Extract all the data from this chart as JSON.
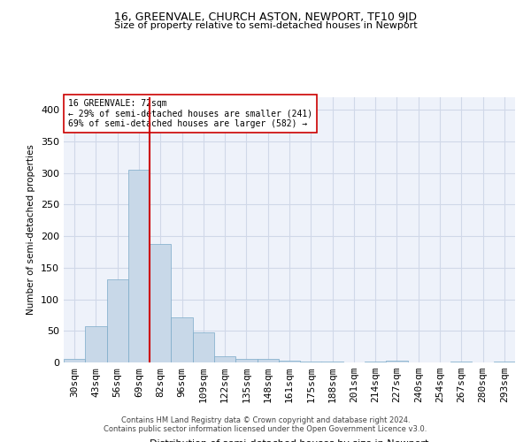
{
  "title": "16, GREENVALE, CHURCH ASTON, NEWPORT, TF10 9JD",
  "subtitle": "Size of property relative to semi-detached houses in Newport",
  "xlabel": "Distribution of semi-detached houses by size in Newport",
  "ylabel": "Number of semi-detached properties",
  "footer_line1": "Contains HM Land Registry data © Crown copyright and database right 2024.",
  "footer_line2": "Contains public sector information licensed under the Open Government Licence v3.0.",
  "annotation_line1": "16 GREENVALE: 72sqm",
  "annotation_line2": "← 29% of semi-detached houses are smaller (241)",
  "annotation_line3": "69% of semi-detached houses are larger (582) →",
  "bar_color": "#c8d8e8",
  "bar_edge_color": "#7aaac8",
  "vline_color": "#cc0000",
  "annotation_box_edge": "#cc0000",
  "grid_color": "#d0d8e8",
  "bg_color": "#eef2fa",
  "categories": [
    "30sqm",
    "43sqm",
    "56sqm",
    "69sqm",
    "82sqm",
    "96sqm",
    "109sqm",
    "122sqm",
    "135sqm",
    "148sqm",
    "161sqm",
    "175sqm",
    "188sqm",
    "201sqm",
    "214sqm",
    "227sqm",
    "240sqm",
    "254sqm",
    "267sqm",
    "280sqm",
    "293sqm"
  ],
  "values": [
    5,
    58,
    131,
    305,
    188,
    72,
    48,
    10,
    6,
    5,
    3,
    2,
    1,
    0,
    2,
    3,
    0,
    0,
    2,
    0,
    1
  ],
  "ylim": [
    0,
    420
  ],
  "yticks": [
    0,
    50,
    100,
    150,
    200,
    250,
    300,
    350,
    400
  ],
  "vline_x_index": 3.5
}
